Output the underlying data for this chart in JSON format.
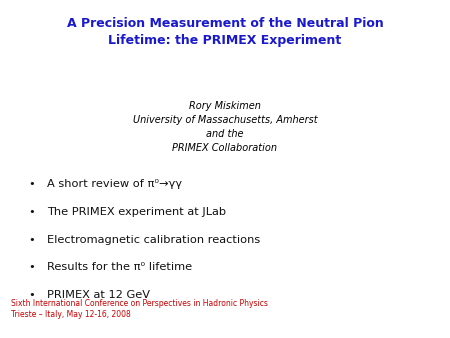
{
  "title_line1": "A Precision Measurement of the Neutral Pion",
  "title_line2": "Lifetime: the PRIMEX Experiment",
  "title_color": "#1a1acc",
  "author_lines": [
    "Rory Miskimen",
    "University of Massachusetts, Amherst",
    "and the",
    "PRIMEX Collaboration"
  ],
  "author_color": "#000000",
  "bullet_items": [
    "A short review of π⁰→γγ",
    "The PRIMEX experiment at JLab",
    "Electromagnetic calibration reactions",
    "Results for the π⁰ lifetime",
    "PRIMEX at 12 GeV"
  ],
  "bullet_color": "#111111",
  "footer_line1": "Sixth International Conference on Perspectives in Hadronic Physics",
  "footer_line2": "Trieste – Italy, May 12-16, 2008",
  "footer_color": "#cc0000",
  "background_color": "#ffffff",
  "title_fontsize": 9.0,
  "author_fontsize": 7.0,
  "bullet_fontsize": 8.2,
  "footer_fontsize": 5.5
}
